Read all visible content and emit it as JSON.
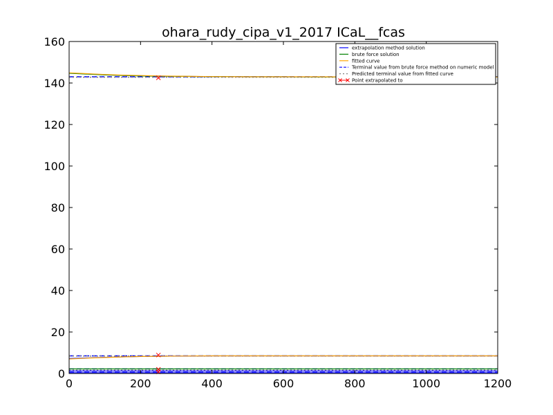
{
  "chart_data": {
    "type": "line",
    "title": "ohara_rudy_cipa_v1_2017 ICaL__fcas",
    "xlabel": "",
    "ylabel": "",
    "xlim": [
      0,
      1200
    ],
    "ylim": [
      0,
      160
    ],
    "xticks": [
      "0",
      "200",
      "400",
      "600",
      "800",
      "1000",
      "1200"
    ],
    "yticks": [
      "0",
      "20",
      "40",
      "60",
      "80",
      "100",
      "120",
      "140",
      "160"
    ],
    "legend_position": "top-right",
    "legend": [
      {
        "label": "extrapolation method solution",
        "color": "#0000ff",
        "style": "solid"
      },
      {
        "label": "brute force solution",
        "color": "#008000",
        "style": "solid"
      },
      {
        "label": "fitted curve",
        "color": "#ffa500",
        "style": "solid"
      },
      {
        "label": "Terminal value from brute force method on numeric model",
        "color": "#0000ff",
        "style": "dashed"
      },
      {
        "label": "Predicted terminal value from fitted curve",
        "color": "#808080",
        "style": "dashed"
      },
      {
        "label": "Point extrapolated to",
        "color": "#ff0000",
        "style": "x-marker"
      }
    ],
    "series": [
      {
        "name": "extrapolation method solution (upper)",
        "color": "#0000ff",
        "x": [
          0,
          50,
          100,
          150,
          200,
          250,
          300,
          400,
          500,
          600,
          700,
          800,
          1000,
          1200
        ],
        "y": [
          144.8,
          144.4,
          144.0,
          143.7,
          143.5,
          143.4,
          143.2,
          143.1,
          143.0,
          143.0,
          142.9,
          142.9,
          142.9,
          142.9
        ]
      },
      {
        "name": "brute force solution (upper)",
        "color": "#008000",
        "x": [
          0,
          50,
          100,
          150,
          200,
          250,
          300,
          400,
          500,
          600,
          700,
          800,
          1000,
          1200
        ],
        "y": [
          144.7,
          144.3,
          143.9,
          143.6,
          143.4,
          143.3,
          143.2,
          143.1,
          143.0,
          143.0,
          142.9,
          142.9,
          142.9,
          142.9
        ]
      },
      {
        "name": "fitted curve (upper)",
        "color": "#ffa500",
        "x": [
          0,
          50,
          100,
          150,
          200,
          250,
          300,
          400,
          500,
          600,
          700,
          800,
          1000,
          1200
        ],
        "y": [
          144.9,
          144.5,
          144.1,
          143.8,
          143.6,
          143.4,
          143.3,
          143.1,
          143.0,
          143.0,
          143.0,
          142.9,
          142.9,
          142.9
        ]
      },
      {
        "name": "extrapolation method solution (middle)",
        "color": "#0000ff",
        "x": [
          0,
          50,
          100,
          150,
          200,
          250,
          300,
          400,
          500,
          600,
          700,
          800,
          1000,
          1200
        ],
        "y": [
          7.2,
          7.5,
          7.8,
          8.0,
          8.2,
          8.3,
          8.4,
          8.5,
          8.5,
          8.5,
          8.5,
          8.5,
          8.5,
          8.5
        ]
      },
      {
        "name": "fitted curve (middle)",
        "color": "#ffa500",
        "x": [
          0,
          50,
          100,
          150,
          200,
          250,
          300,
          400,
          500,
          600,
          700,
          800,
          1000,
          1200
        ],
        "y": [
          7.0,
          7.4,
          7.7,
          8.0,
          8.2,
          8.3,
          8.4,
          8.5,
          8.5,
          8.5,
          8.5,
          8.5,
          8.5,
          8.5
        ]
      },
      {
        "name": "brute force solution (lower)",
        "color": "#008000",
        "x": [
          0,
          200,
          400,
          600,
          800,
          1000,
          1200
        ],
        "y": [
          2.2,
          2.2,
          2.2,
          2.2,
          2.2,
          2.2,
          2.2
        ]
      },
      {
        "name": "extrapolation method solution (lower)",
        "color": "#0000ff",
        "x": [
          0,
          200,
          400,
          600,
          800,
          1000,
          1200
        ],
        "y": [
          1.2,
          1.2,
          1.2,
          1.2,
          1.2,
          1.2,
          1.2
        ]
      },
      {
        "name": "extrapolation method solution (bottom)",
        "color": "#0000ff",
        "x": [
          0,
          200,
          400,
          600,
          800,
          1000,
          1200
        ],
        "y": [
          0.4,
          0.4,
          0.4,
          0.4,
          0.4,
          0.4,
          0.4
        ]
      }
    ],
    "reference_lines": [
      {
        "name": "terminal-brute-force-upper",
        "y": 143.0,
        "color": "#0000ff",
        "style": "dashed"
      },
      {
        "name": "predicted-terminal-upper",
        "y": 142.8,
        "color": "#808080",
        "style": "dashed"
      },
      {
        "name": "terminal-brute-force-middle",
        "y": 8.5,
        "color": "#0000ff",
        "style": "dashed"
      },
      {
        "name": "predicted-terminal-middle",
        "y": 8.4,
        "color": "#808080",
        "style": "dashed"
      },
      {
        "name": "terminal-brute-force-lower",
        "y": 2.2,
        "color": "#0000ff",
        "style": "dashed"
      },
      {
        "name": "predicted-terminal-lower",
        "y": 1.6,
        "color": "#808080",
        "style": "dashed"
      },
      {
        "name": "terminal-brute-force-bottom",
        "y": 0.6,
        "color": "#0000ff",
        "style": "dashed"
      }
    ],
    "extrapolated_points": [
      {
        "x": 250,
        "y": 142.5
      },
      {
        "x": 250,
        "y": 8.9
      },
      {
        "x": 250,
        "y": 2.0
      },
      {
        "x": 250,
        "y": 0.8
      }
    ]
  }
}
